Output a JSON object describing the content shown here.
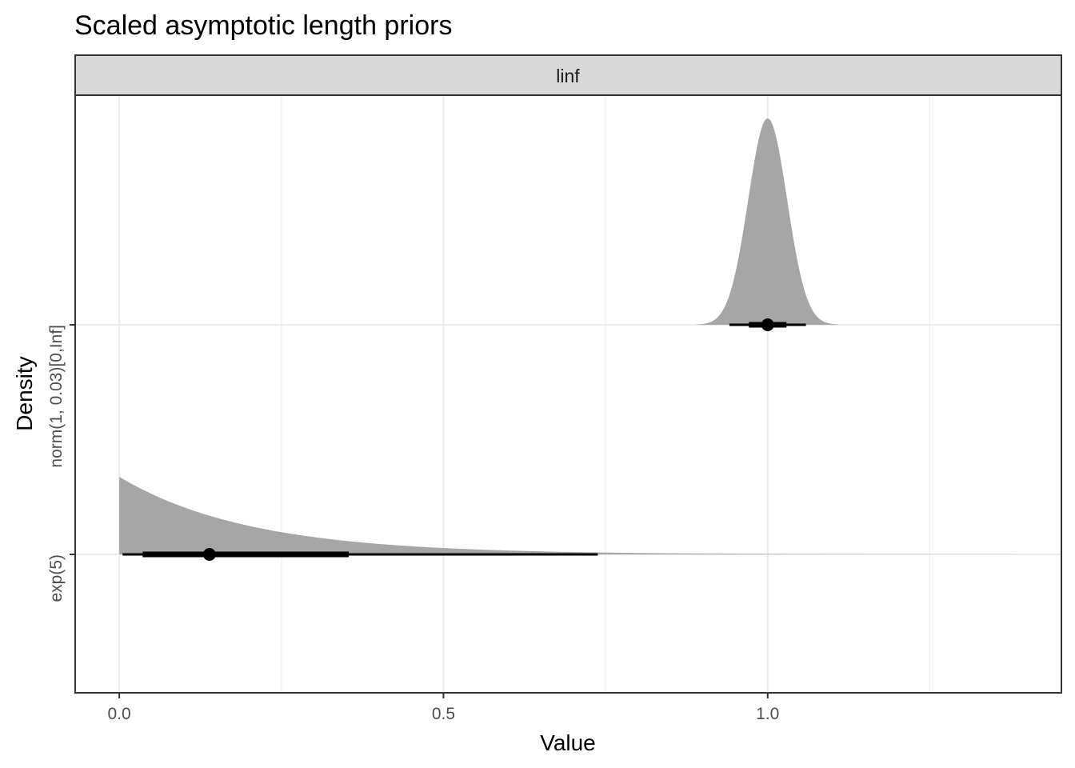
{
  "chart_data": {
    "type": "area",
    "title": "Scaled asymptotic length priors",
    "facet": "linf",
    "xlabel": "Value",
    "ylabel": "Density",
    "xlim": [
      -0.068,
      1.453
    ],
    "x_ticks": [
      "0.0",
      "0.5",
      "1.0"
    ],
    "x_tick_values": [
      0.0,
      0.5,
      1.0
    ],
    "x_minor_values": [
      0.25,
      0.75,
      1.25
    ],
    "grid": true,
    "series": [
      {
        "name": "exp(5)",
        "distribution": "exponential",
        "rate": 5,
        "x_range": [
          0.0,
          1.381
        ],
        "median": 0.139,
        "interval_66": [
          0.036,
          0.354
        ],
        "interval_95": [
          0.005,
          0.738
        ]
      },
      {
        "name": "norm(1, 0.03)[0,Inf]",
        "distribution": "normal",
        "mean": 1.0,
        "sd": 0.03,
        "x_range": [
          0.89,
          1.11
        ],
        "median": 1.0,
        "interval_66": [
          0.971,
          1.029
        ],
        "interval_95": [
          0.941,
          1.059
        ]
      }
    ],
    "colors": {
      "density_fill": "#a6a6a6",
      "interval": "#000000",
      "grid_major": "#ebebeb",
      "strip_fill": "#d9d9d9",
      "panel_border": "#333333"
    }
  }
}
